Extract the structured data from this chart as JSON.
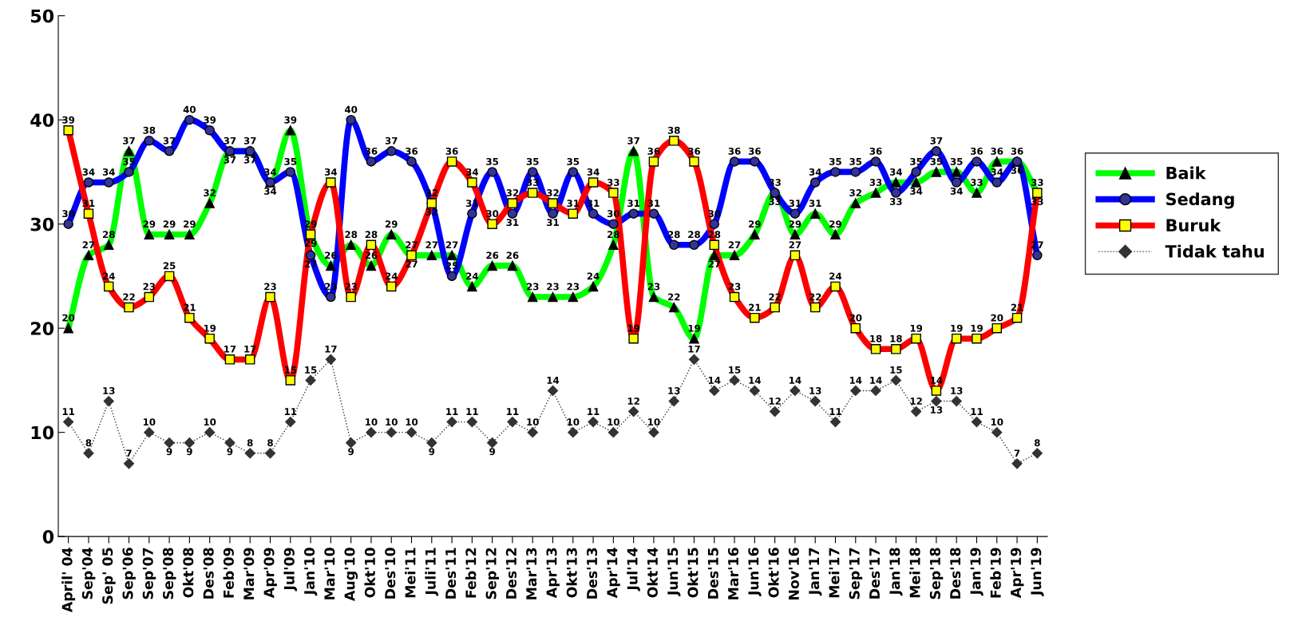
{
  "chart_data": {
    "type": "line",
    "categories": [
      "April' 04",
      "Sep'04",
      "Sep' 05",
      "Sep'06",
      "Sep'07",
      "Sep'08",
      "Okt'08",
      "Des'08",
      "Feb'09",
      "Mar'09",
      "Apr'09",
      "Jul'09",
      "Jan'10",
      "Mar'10",
      "Aug'10",
      "Okt'10",
      "Des'10",
      "Mei'11",
      "Juli'11",
      "Des'11",
      "Feb'12",
      "Sep'12",
      "Des'12",
      "Mar'13",
      "Apr'13",
      "Okt'13",
      "Des'13",
      "Apr'14",
      "Jul'14",
      "Okt'14",
      "Jun'15",
      "Okt'15",
      "Des'15",
      "Mar'16",
      "Jun'16",
      "Okt'16",
      "Nov'16",
      "Jan'17",
      "Mei'17",
      "Sep'17",
      "Des'17",
      "Jan'18",
      "Mei'18",
      "Sep'18",
      "Des'18",
      "Jan'19",
      "Feb'19",
      "Apr'19",
      "Jun'19"
    ],
    "series": [
      {
        "name": "Baik",
        "color": "#00ff00",
        "marker": "triangle",
        "line_style": "solid",
        "values": [
          20,
          27,
          28,
          37,
          29,
          29,
          29,
          32,
          37,
          37,
          34,
          39,
          29,
          26,
          28,
          26,
          29,
          27,
          27,
          27,
          24,
          26,
          26,
          23,
          23,
          23,
          24,
          28,
          37,
          23,
          22,
          19,
          27,
          27,
          29,
          33,
          29,
          31,
          29,
          32,
          33,
          34,
          34,
          35,
          35,
          33,
          36,
          36,
          33
        ]
      },
      {
        "name": "Sedang",
        "color": "#0000ff",
        "marker": "circle",
        "line_style": "solid",
        "values": [
          30,
          34,
          34,
          35,
          38,
          37,
          40,
          39,
          37,
          37,
          34,
          35,
          27,
          23,
          40,
          36,
          37,
          36,
          32,
          25,
          31,
          35,
          31,
          35,
          31,
          35,
          31,
          30,
          31,
          31,
          28,
          28,
          30,
          36,
          36,
          33,
          31,
          34,
          35,
          35,
          36,
          33,
          35,
          37,
          34,
          36,
          34,
          36,
          27
        ]
      },
      {
        "name": "Buruk",
        "color": "#ff0000",
        "marker": "square",
        "line_style": "solid",
        "values": [
          39,
          31,
          24,
          22,
          23,
          25,
          21,
          19,
          17,
          17,
          23,
          15,
          29,
          34,
          23,
          28,
          24,
          27,
          32,
          36,
          34,
          30,
          32,
          33,
          32,
          31,
          34,
          33,
          19,
          36,
          38,
          36,
          28,
          23,
          21,
          22,
          27,
          22,
          24,
          20,
          18,
          18,
          19,
          14,
          19,
          19,
          20,
          21,
          33
        ]
      },
      {
        "name": "Tidak tahu",
        "color": "#333333",
        "marker": "diamond",
        "line_style": "dotted",
        "values": [
          11,
          8,
          13,
          7,
          10,
          9,
          9,
          10,
          9,
          8,
          8,
          11,
          15,
          17,
          9,
          10,
          10,
          10,
          9,
          11,
          11,
          9,
          11,
          10,
          14,
          10,
          11,
          10,
          12,
          10,
          13,
          17,
          14,
          15,
          14,
          12,
          14,
          13,
          11,
          14,
          14,
          15,
          12,
          13,
          13,
          11,
          10,
          7,
          8
        ]
      }
    ],
    "ylim": [
      0,
      50
    ],
    "yticks": [
      0,
      10,
      20,
      30,
      40,
      50
    ],
    "grid": false,
    "legend": "right",
    "data_labels": true
  }
}
